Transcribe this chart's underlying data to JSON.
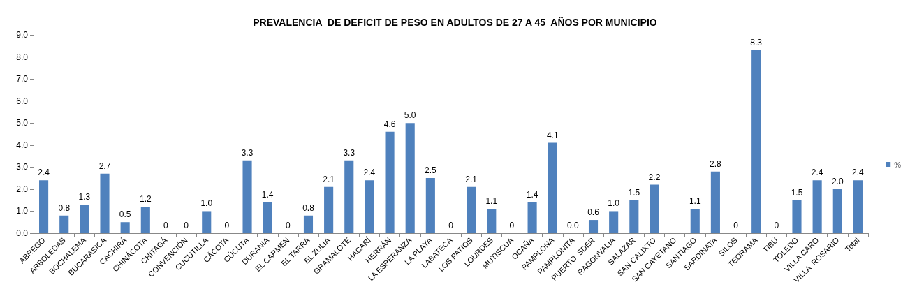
{
  "chart_data": {
    "type": "bar",
    "title": "PREVALENCIA  DE DEFICIT DE PESO EN ADULTOS DE 27 A 45  AÑOS POR MUNICIPIO",
    "categories": [
      "ABREGO",
      "ARBOLEDAS",
      "BOCHALEMA",
      "BUCARASICA",
      "CACHIRÁ",
      "CHINÁCOTA",
      "CHITAGÁ",
      "CONVENCIÓN",
      "CUCUTILLA",
      "CÁCOTA",
      "CÚCUTA",
      "DURANIA",
      "EL CARMEN",
      "EL TARRA",
      "EL ZULIA",
      "GRAMALOTE",
      "HACARÍ",
      "HERRÁN",
      "LA ESPERANZA",
      "LA PLAYA",
      "LABATECA",
      "LOS PATIOS",
      "LOURDES",
      "MUTISCUA",
      "OCAÑA",
      "PAMPLONA",
      "PAMPLONITA",
      "PUERTO  SDER",
      "RAGONVALIA",
      "SALAZAR",
      "SAN CALIXTO",
      "SAN CAYETANO",
      "SANTIAGO",
      "SARDINATA",
      "SILOS",
      "TEORAMA",
      "TIBÚ",
      "TOLEDO",
      "VILLA CARO",
      "VILLA  ROSARIO",
      "Total"
    ],
    "series": [
      {
        "name": "%",
        "color": "#4f81bd",
        "values": [
          2.4,
          0.8,
          1.3,
          2.7,
          0.5,
          1.2,
          0,
          0,
          1.0,
          0,
          3.3,
          1.4,
          0,
          0.8,
          2.1,
          3.3,
          2.4,
          4.6,
          5.0,
          2.5,
          0,
          2.1,
          1.1,
          0,
          1.4,
          4.1,
          0.0,
          0.6,
          1.0,
          1.5,
          2.2,
          null,
          1.1,
          2.8,
          0,
          8.3,
          0,
          1.5,
          2.4,
          2.0,
          2.4
        ],
        "value_labels": [
          "2.4",
          "0.8",
          "1.3",
          "2.7",
          "0.5",
          "1.2",
          "0",
          "0",
          "1.0",
          "0",
          "3.3",
          "1.4",
          "0",
          "0.8",
          "2.1",
          "3.3",
          "2.4",
          "4.6",
          "5.0",
          "2.5",
          "0",
          "2.1",
          "1.1",
          "0",
          "1.4",
          "4.1",
          "0.0",
          "0.6",
          "1.0",
          "1.5",
          "2.2",
          null,
          "1.1",
          "2.8",
          "0",
          "8.3",
          "0",
          "1.5",
          "2.4",
          "2.0",
          "2.4"
        ]
      }
    ],
    "ylim": [
      0,
      9
    ],
    "yticks": [
      {
        "value": 0,
        "label": "0.0"
      },
      {
        "value": 1,
        "label": "1.0"
      },
      {
        "value": 2,
        "label": "2.0"
      },
      {
        "value": 3,
        "label": "3.0"
      },
      {
        "value": 4,
        "label": "4.0"
      },
      {
        "value": 5,
        "label": "5.0"
      },
      {
        "value": 6,
        "label": "6.0"
      },
      {
        "value": 7,
        "label": "7.0"
      },
      {
        "value": 8,
        "label": "8.0"
      },
      {
        "value": 9,
        "label": "9.0"
      }
    ],
    "grid": false,
    "legend": "right"
  }
}
